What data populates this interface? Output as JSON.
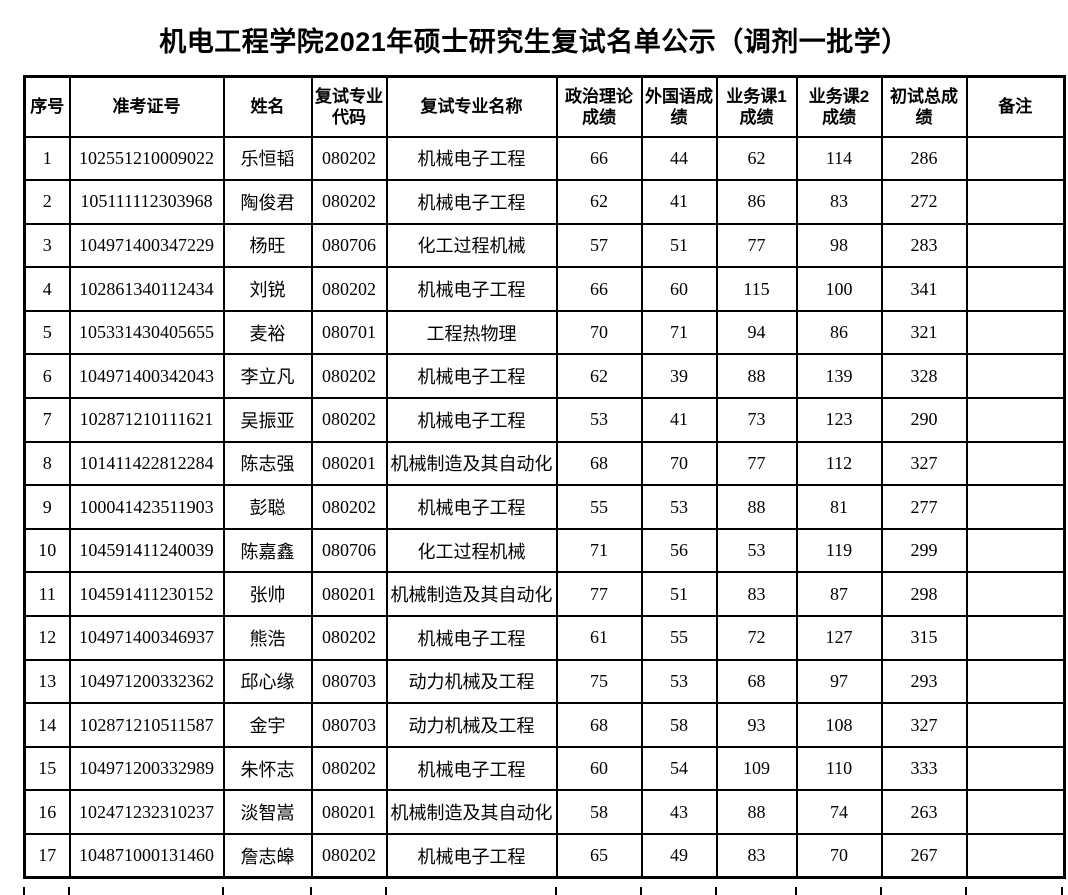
{
  "title": "机电工程学院2021年硕士研究生复试名单公示（调剂一批学）",
  "table": {
    "columns": [
      {
        "id": "seq",
        "label": "序号"
      },
      {
        "id": "ticket",
        "label": "准考证号"
      },
      {
        "id": "name",
        "label": "姓名"
      },
      {
        "id": "code",
        "label": "复试专业\n代码"
      },
      {
        "id": "major",
        "label": "复试专业名称"
      },
      {
        "id": "politics",
        "label": "政治理论\n成绩"
      },
      {
        "id": "foreign",
        "label": "外国语成\n绩"
      },
      {
        "id": "course1",
        "label": "业务课1\n成绩"
      },
      {
        "id": "course2",
        "label": "业务课2\n成绩"
      },
      {
        "id": "total",
        "label": "初试总成\n绩"
      },
      {
        "id": "remark",
        "label": "备注"
      }
    ],
    "rows": [
      {
        "seq": "1",
        "ticket": "102551210009022",
        "name": "乐恒韬",
        "code": "080202",
        "major": "机械电子工程",
        "politics": "66",
        "foreign": "44",
        "course1": "62",
        "course2": "114",
        "total": "286",
        "remark": ""
      },
      {
        "seq": "2",
        "ticket": "105111112303968",
        "name": "陶俊君",
        "code": "080202",
        "major": "机械电子工程",
        "politics": "62",
        "foreign": "41",
        "course1": "86",
        "course2": "83",
        "total": "272",
        "remark": ""
      },
      {
        "seq": "3",
        "ticket": "104971400347229",
        "name": "杨旺",
        "code": "080706",
        "major": "化工过程机械",
        "politics": "57",
        "foreign": "51",
        "course1": "77",
        "course2": "98",
        "total": "283",
        "remark": ""
      },
      {
        "seq": "4",
        "ticket": "102861340112434",
        "name": "刘锐",
        "code": "080202",
        "major": "机械电子工程",
        "politics": "66",
        "foreign": "60",
        "course1": "115",
        "course2": "100",
        "total": "341",
        "remark": ""
      },
      {
        "seq": "5",
        "ticket": "105331430405655",
        "name": "麦裕",
        "code": "080701",
        "major": "工程热物理",
        "politics": "70",
        "foreign": "71",
        "course1": "94",
        "course2": "86",
        "total": "321",
        "remark": ""
      },
      {
        "seq": "6",
        "ticket": "104971400342043",
        "name": "李立凡",
        "code": "080202",
        "major": "机械电子工程",
        "politics": "62",
        "foreign": "39",
        "course1": "88",
        "course2": "139",
        "total": "328",
        "remark": ""
      },
      {
        "seq": "7",
        "ticket": "102871210111621",
        "name": "吴振亚",
        "code": "080202",
        "major": "机械电子工程",
        "politics": "53",
        "foreign": "41",
        "course1": "73",
        "course2": "123",
        "total": "290",
        "remark": ""
      },
      {
        "seq": "8",
        "ticket": "101411422812284",
        "name": "陈志强",
        "code": "080201",
        "major": "机械制造及其自动化",
        "politics": "68",
        "foreign": "70",
        "course1": "77",
        "course2": "112",
        "total": "327",
        "remark": ""
      },
      {
        "seq": "9",
        "ticket": "100041423511903",
        "name": "彭聪",
        "code": "080202",
        "major": "机械电子工程",
        "politics": "55",
        "foreign": "53",
        "course1": "88",
        "course2": "81",
        "total": "277",
        "remark": ""
      },
      {
        "seq": "10",
        "ticket": "104591411240039",
        "name": "陈嘉鑫",
        "code": "080706",
        "major": "化工过程机械",
        "politics": "71",
        "foreign": "56",
        "course1": "53",
        "course2": "119",
        "total": "299",
        "remark": ""
      },
      {
        "seq": "11",
        "ticket": "104591411230152",
        "name": "张帅",
        "code": "080201",
        "major": "机械制造及其自动化",
        "politics": "77",
        "foreign": "51",
        "course1": "83",
        "course2": "87",
        "total": "298",
        "remark": ""
      },
      {
        "seq": "12",
        "ticket": "104971400346937",
        "name": "熊浩",
        "code": "080202",
        "major": "机械电子工程",
        "politics": "61",
        "foreign": "55",
        "course1": "72",
        "course2": "127",
        "total": "315",
        "remark": ""
      },
      {
        "seq": "13",
        "ticket": "104971200332362",
        "name": "邱心缘",
        "code": "080703",
        "major": "动力机械及工程",
        "politics": "75",
        "foreign": "53",
        "course1": "68",
        "course2": "97",
        "total": "293",
        "remark": ""
      },
      {
        "seq": "14",
        "ticket": "102871210511587",
        "name": "金宇",
        "code": "080703",
        "major": "动力机械及工程",
        "politics": "68",
        "foreign": "58",
        "course1": "93",
        "course2": "108",
        "total": "327",
        "remark": ""
      },
      {
        "seq": "15",
        "ticket": "104971200332989",
        "name": "朱怀志",
        "code": "080202",
        "major": "机械电子工程",
        "politics": "60",
        "foreign": "54",
        "course1": "109",
        "course2": "110",
        "total": "333",
        "remark": ""
      },
      {
        "seq": "16",
        "ticket": "102471232310237",
        "name": "淡智嵩",
        "code": "080201",
        "major": "机械制造及其自动化",
        "politics": "58",
        "foreign": "43",
        "course1": "88",
        "course2": "74",
        "total": "263",
        "remark": ""
      },
      {
        "seq": "17",
        "ticket": "104871000131460",
        "name": "詹志皞",
        "code": "080202",
        "major": "机械电子工程",
        "politics": "65",
        "foreign": "49",
        "course1": "83",
        "course2": "70",
        "total": "267",
        "remark": ""
      }
    ]
  }
}
